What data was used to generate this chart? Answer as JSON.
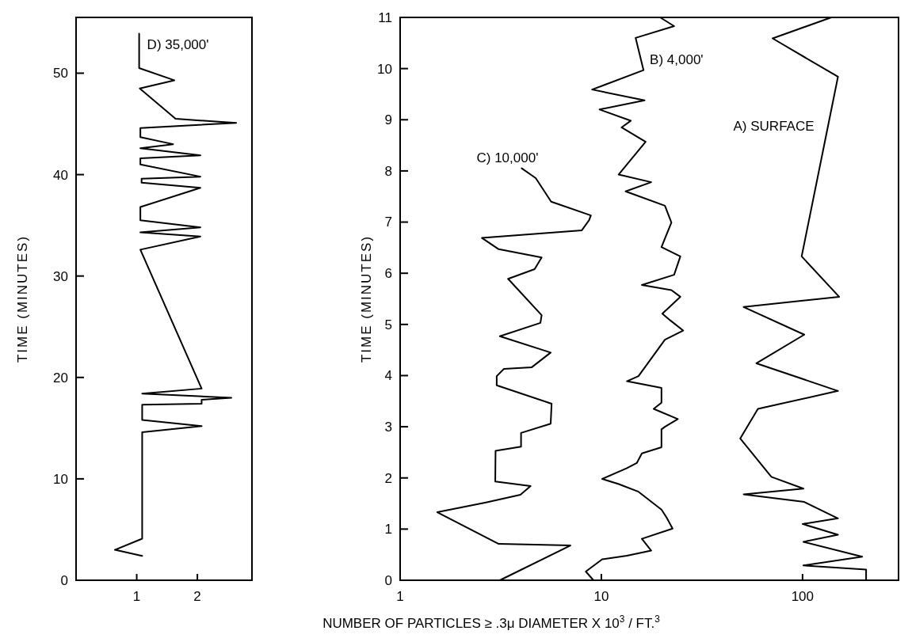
{
  "chart_data": [
    {
      "type": "line",
      "ylabel": "TIME (MINUTES)",
      "xlim": [
        0,
        2.9
      ],
      "ylim": [
        0,
        55.5
      ],
      "xticks": [
        1,
        2
      ],
      "yticks": [
        0,
        10,
        20,
        30,
        40,
        50
      ],
      "series": [
        {
          "name": "D) 35,000'",
          "color": "#000000",
          "x": [
            1.04,
            1.04,
            1.62,
            1.05,
            1.64,
            2.64,
            1.06,
            1.06,
            1.6,
            1.06,
            2.05,
            1.06,
            1.06,
            2.05,
            1.08,
            1.08,
            2.05,
            1.06,
            1.06,
            2.05,
            1.06,
            2.05,
            1.06,
            2.07,
            1.09,
            2.56,
            2.07,
            2.07,
            1.09,
            1.09,
            2.07,
            1.09,
            1.09,
            0.64,
            1.09
          ],
          "values": [
            53.9,
            50.5,
            49.3,
            48.5,
            45.5,
            45.1,
            44.6,
            43.7,
            43.0,
            42.6,
            41.9,
            41.6,
            41.0,
            39.8,
            39.6,
            39.2,
            38.7,
            36.8,
            35.5,
            34.8,
            34.3,
            33.9,
            32.6,
            18.9,
            18.4,
            18.0,
            17.8,
            17.4,
            17.3,
            15.8,
            15.2,
            14.6,
            4.1,
            3.0,
            2.4
          ]
        }
      ]
    },
    {
      "type": "line",
      "ylabel": "TIME (MINUTES)",
      "xlabel": "NUMBER OF PARTICLES ≥ .3μ DIAMETER X 10$^{3}$ / FT.$^{3}$",
      "log": "x",
      "xlim": [
        1,
        300
      ],
      "ylim": [
        0,
        11
      ],
      "xticks": [
        1,
        10,
        100
      ],
      "yticks": [
        0,
        1,
        2,
        3,
        4,
        5,
        6,
        7,
        8,
        9,
        10,
        11
      ],
      "series": [
        {
          "name": "A) SURFACE",
          "color": "#000000",
          "x": [
            139,
            71,
            150,
            99,
            152,
            51,
            102,
            59,
            150,
            60,
            49,
            70,
            101,
            51,
            102,
            150,
            100,
            150,
            101,
            198,
            101,
            207,
            207
          ],
          "values": [
            11.0,
            10.59,
            9.84,
            6.33,
            5.54,
            5.34,
            4.8,
            4.24,
            3.7,
            3.35,
            2.77,
            2.02,
            1.79,
            1.68,
            1.53,
            1.21,
            1.1,
            0.89,
            0.75,
            0.46,
            0.29,
            0.21,
            0
          ]
        },
        {
          "name": "B) 4,000'",
          "color": "#000000",
          "x": [
            19.6,
            23.0,
            14.8,
            16.2,
            9.0,
            16.4,
            9.8,
            14.0,
            12.6,
            16.6,
            12.2,
            17.7,
            13.2,
            20.7,
            22.3,
            19.9,
            24.7,
            23.0,
            15.9,
            22.3,
            24.7,
            20.1,
            22.0,
            25.5,
            20.7,
            15.3,
            13.4,
            19.9,
            19.9,
            18.2,
            24.0,
            20.7,
            19.9,
            19.9,
            15.9,
            15.0,
            13.4,
            10.1,
            12.2,
            15.3,
            19.9,
            21.0,
            22.6,
            15.9,
            17.7,
            13.4,
            10.1,
            8.37,
            9.14
          ],
          "values": [
            11.0,
            10.83,
            10.6,
            9.97,
            9.59,
            9.38,
            9.2,
            8.98,
            8.85,
            8.57,
            7.93,
            7.78,
            7.6,
            7.32,
            6.99,
            6.51,
            6.33,
            5.97,
            5.77,
            5.67,
            5.54,
            5.21,
            5.08,
            4.88,
            4.7,
            3.99,
            3.89,
            3.76,
            3.47,
            3.35,
            3.15,
            3.0,
            2.95,
            2.6,
            2.48,
            2.29,
            2.19,
            1.98,
            1.88,
            1.73,
            1.38,
            1.24,
            1.01,
            0.81,
            0.58,
            0.48,
            0.41,
            0.17,
            0
          ]
        },
        {
          "name": "C) 10,000'",
          "color": "#000000",
          "x": [
            4.02,
            4.72,
            5.63,
            8.87,
            8.7,
            8.0,
            2.55,
            3.09,
            5.05,
            4.66,
            3.44,
            5.05,
            4.98,
            3.13,
            5.6,
            4.5,
            3.28,
            3.02,
            3.02,
            5.66,
            5.6,
            3.99,
            3.99,
            2.98,
            2.97,
            4.45,
            3.96,
            2.67,
            1.53,
            3.09,
            7.02,
            3.13
          ],
          "values": [
            8.05,
            7.86,
            7.4,
            7.13,
            7.04,
            6.84,
            6.69,
            6.47,
            6.31,
            6.08,
            5.89,
            5.18,
            5.03,
            4.77,
            4.45,
            4.16,
            4.13,
            3.99,
            3.81,
            3.45,
            3.06,
            2.88,
            2.61,
            2.53,
            1.93,
            1.84,
            1.67,
            1.52,
            1.33,
            0.71,
            0.68,
            0
          ]
        }
      ]
    }
  ]
}
